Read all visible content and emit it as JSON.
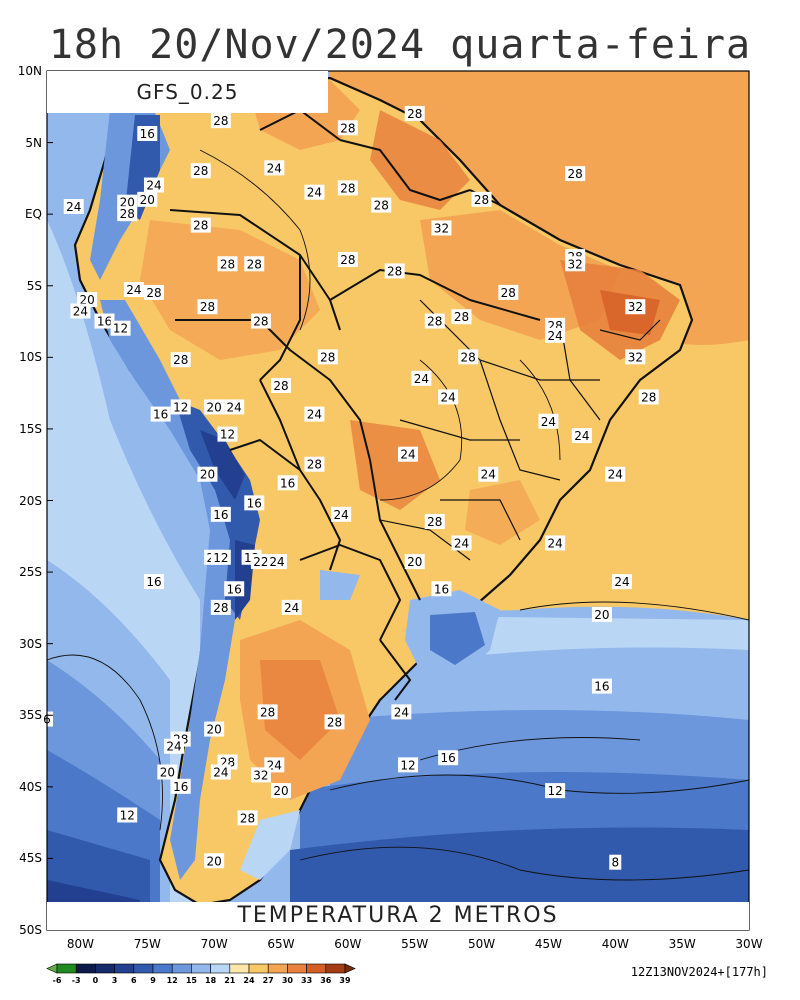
{
  "header": {
    "title": "18h 20/Nov/2024 quarta-feira",
    "model": "GFS_0.25",
    "variable": "TEMPERATURA 2 METROS",
    "run_info": "12Z13NOV2024+[177h]"
  },
  "axes": {
    "lat_labels": [
      "10N",
      "5N",
      "EQ",
      "5S",
      "10S",
      "15S",
      "20S",
      "25S",
      "30S",
      "35S",
      "40S",
      "45S",
      "50S"
    ],
    "lon_labels": [
      "80W",
      "75W",
      "70W",
      "65W",
      "60W",
      "55W",
      "50W",
      "45W",
      "40W",
      "35W",
      "30W"
    ]
  },
  "colorbar": {
    "labels": [
      "-6",
      "-3",
      "0",
      "3",
      "6",
      "9",
      "12",
      "15",
      "18",
      "21",
      "24",
      "27",
      "30",
      "33",
      "36",
      "39"
    ],
    "colors": [
      "#5fb04a",
      "#1f8a1f",
      "#0b1a4a",
      "#16296b",
      "#22408f",
      "#3159ac",
      "#4b78c9",
      "#6c97dd",
      "#93b8ec",
      "#b9d6f5",
      "#fde6a8",
      "#f8c866",
      "#f3a554",
      "#e7813d",
      "#d45e25",
      "#a33c12",
      "#7a2a08"
    ]
  },
  "isotherm_labels": [
    {
      "t": "28",
      "lon": -69.5,
      "lat": 6.5
    },
    {
      "t": "16",
      "lon": -75,
      "lat": 5.6
    },
    {
      "t": "28",
      "lon": -71,
      "lat": 3.0
    },
    {
      "t": "24",
      "lon": -65.5,
      "lat": 3.2
    },
    {
      "t": "28",
      "lon": -60,
      "lat": 6.0
    },
    {
      "t": "28",
      "lon": -55,
      "lat": 7.0
    },
    {
      "t": "28",
      "lon": -43,
      "lat": 2.8
    },
    {
      "t": "24",
      "lon": -74.5,
      "lat": 2.0
    },
    {
      "t": "24",
      "lon": -62.5,
      "lat": 1.5
    },
    {
      "t": "28",
      "lon": -60,
      "lat": 1.8
    },
    {
      "t": "20",
      "lon": -76.5,
      "lat": 0.8
    },
    {
      "t": "20",
      "lon": -75,
      "lat": 1.0
    },
    {
      "t": "28",
      "lon": -50,
      "lat": 1.0
    },
    {
      "t": "28",
      "lon": -57.5,
      "lat": 0.6
    },
    {
      "t": "24",
      "lon": -80.5,
      "lat": 0.5
    },
    {
      "t": "28",
      "lon": -76.5,
      "lat": 0.0
    },
    {
      "t": "28",
      "lon": -71,
      "lat": -0.8
    },
    {
      "t": "32",
      "lon": -53,
      "lat": -1.0
    },
    {
      "t": "28",
      "lon": -69,
      "lat": -3.5
    },
    {
      "t": "28",
      "lon": -67,
      "lat": -3.5
    },
    {
      "t": "28",
      "lon": -60,
      "lat": -3.2
    },
    {
      "t": "28",
      "lon": -56.5,
      "lat": -4.0
    },
    {
      "t": "28",
      "lon": -43,
      "lat": -3.0
    },
    {
      "t": "32",
      "lon": -43,
      "lat": -3.5
    },
    {
      "t": "24",
      "lon": -76,
      "lat": -5.3
    },
    {
      "t": "28",
      "lon": -74.5,
      "lat": -5.5
    },
    {
      "t": "28",
      "lon": -48,
      "lat": -5.5
    },
    {
      "t": "20",
      "lon": -79.5,
      "lat": -6.0
    },
    {
      "t": "24",
      "lon": -80,
      "lat": -6.8
    },
    {
      "t": "28",
      "lon": -70.5,
      "lat": -6.5
    },
    {
      "t": "32",
      "lon": -38.5,
      "lat": -6.5
    },
    {
      "t": "16",
      "lon": -78.2,
      "lat": -7.5
    },
    {
      "t": "12",
      "lon": -77,
      "lat": -8.0
    },
    {
      "t": "28",
      "lon": -66.5,
      "lat": -7.5
    },
    {
      "t": "28",
      "lon": -53.5,
      "lat": -7.5
    },
    {
      "t": "28",
      "lon": -51.5,
      "lat": -7.2
    },
    {
      "t": "28",
      "lon": -44.5,
      "lat": -7.8
    },
    {
      "t": "24",
      "lon": -44.5,
      "lat": -8.5
    },
    {
      "t": "28",
      "lon": -72.5,
      "lat": -10.2
    },
    {
      "t": "28",
      "lon": -61.5,
      "lat": -10.0
    },
    {
      "t": "28",
      "lon": -51,
      "lat": -10.0
    },
    {
      "t": "32",
      "lon": -38.5,
      "lat": -10.0
    },
    {
      "t": "24",
      "lon": -54.5,
      "lat": -11.5
    },
    {
      "t": "28",
      "lon": -65,
      "lat": -12.0
    },
    {
      "t": "24",
      "lon": -52.5,
      "lat": -12.8
    },
    {
      "t": "28",
      "lon": -37.5,
      "lat": -12.8
    },
    {
      "t": "12",
      "lon": -72.5,
      "lat": -13.5
    },
    {
      "t": "16",
      "lon": -74,
      "lat": -14.0
    },
    {
      "t": "20",
      "lon": -70,
      "lat": -13.5
    },
    {
      "t": "24",
      "lon": -68.5,
      "lat": -13.5
    },
    {
      "t": "24",
      "lon": -62.5,
      "lat": -14.0
    },
    {
      "t": "24",
      "lon": -45,
      "lat": -14.5
    },
    {
      "t": "12",
      "lon": -69,
      "lat": -15.4
    },
    {
      "t": "24",
      "lon": -42.5,
      "lat": -15.5
    },
    {
      "t": "24",
      "lon": -55.5,
      "lat": -16.8
    },
    {
      "t": "28",
      "lon": -62.5,
      "lat": -17.5
    },
    {
      "t": "20",
      "lon": -70.5,
      "lat": -18.2
    },
    {
      "t": "24",
      "lon": -49.5,
      "lat": -18.2
    },
    {
      "t": "24",
      "lon": -40,
      "lat": -18.2
    },
    {
      "t": "16",
      "lon": -64.5,
      "lat": -18.8
    },
    {
      "t": "16",
      "lon": -67,
      "lat": -20.2
    },
    {
      "t": "24",
      "lon": -60.5,
      "lat": -21.0
    },
    {
      "t": "28",
      "lon": -53.5,
      "lat": -21.5
    },
    {
      "t": "16",
      "lon": -69.5,
      "lat": -21.0
    },
    {
      "t": "24",
      "lon": -51.5,
      "lat": -23.0
    },
    {
      "t": "24",
      "lon": -44.5,
      "lat": -23.0
    },
    {
      "t": "24",
      "lon": -70,
      "lat": -24.0
    },
    {
      "t": "12",
      "lon": -69.5,
      "lat": -24.0
    },
    {
      "t": "12",
      "lon": -67.2,
      "lat": -24.0
    },
    {
      "t": "22",
      "lon": -66.5,
      "lat": -24.3
    },
    {
      "t": "24",
      "lon": -65.3,
      "lat": -24.3
    },
    {
      "t": "20",
      "lon": -55,
      "lat": -24.3
    },
    {
      "t": "16",
      "lon": -74.5,
      "lat": -25.7
    },
    {
      "t": "24",
      "lon": -39.5,
      "lat": -25.7
    },
    {
      "t": "16",
      "lon": -68.5,
      "lat": -26.2
    },
    {
      "t": "16",
      "lon": -53,
      "lat": -26.2
    },
    {
      "t": "28",
      "lon": -69.5,
      "lat": -27.5
    },
    {
      "t": "24",
      "lon": -64.2,
      "lat": -27.5
    },
    {
      "t": "20",
      "lon": -41,
      "lat": -28.0
    },
    {
      "t": "16",
      "lon": -41,
      "lat": -33.0
    },
    {
      "t": "24",
      "lon": -56,
      "lat": -34.8
    },
    {
      "t": "28",
      "lon": -66,
      "lat": -34.8
    },
    {
      "t": "6",
      "lon": -82.5,
      "lat": -35.3
    },
    {
      "t": "28",
      "lon": -61,
      "lat": -35.5
    },
    {
      "t": "20",
      "lon": -70,
      "lat": -36.0
    },
    {
      "t": "28",
      "lon": -72.5,
      "lat": -36.7
    },
    {
      "t": "24",
      "lon": -73,
      "lat": -37.2
    },
    {
      "t": "28",
      "lon": -69,
      "lat": -38.3
    },
    {
      "t": "24",
      "lon": -65.5,
      "lat": -38.5
    },
    {
      "t": "16",
      "lon": -52.5,
      "lat": -38.0
    },
    {
      "t": "12",
      "lon": -55.5,
      "lat": -38.5
    },
    {
      "t": "20",
      "lon": -73.5,
      "lat": -39.0
    },
    {
      "t": "24",
      "lon": -69.5,
      "lat": -39.0
    },
    {
      "t": "32",
      "lon": -66.5,
      "lat": -39.2
    },
    {
      "t": "16",
      "lon": -72.5,
      "lat": -40.0
    },
    {
      "t": "20",
      "lon": -65,
      "lat": -40.3
    },
    {
      "t": "12",
      "lon": -44.5,
      "lat": -40.3
    },
    {
      "t": "12",
      "lon": -76.5,
      "lat": -42.0
    },
    {
      "t": "28",
      "lon": -67.5,
      "lat": -42.2
    },
    {
      "t": "20",
      "lon": -70,
      "lat": -45.2
    },
    {
      "t": "8",
      "lon": -40,
      "lat": -45.3
    }
  ]
}
